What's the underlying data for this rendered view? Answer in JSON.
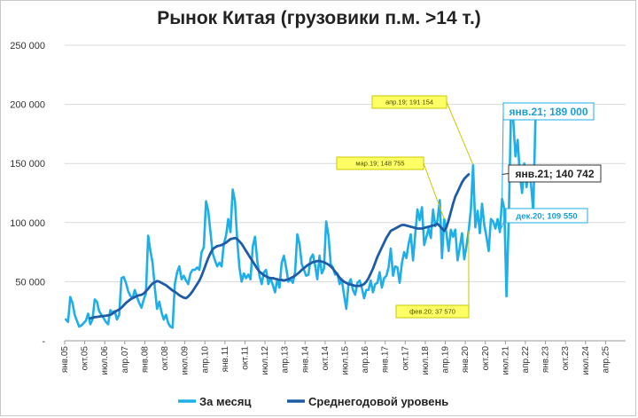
{
  "chart_data": {
    "type": "line",
    "title": "Рынок Китая (грузовики п.м. >14 т.)",
    "xlabel": "",
    "ylabel": "",
    "ylim": [
      0,
      250000
    ],
    "y_ticks": [
      "-",
      "50 000",
      "100 000",
      "150 000",
      "200 000",
      "250 000"
    ],
    "x_ticks": [
      "янв.05",
      "окт.05",
      "июл.06",
      "апр.07",
      "янв.08",
      "окт.08",
      "июл.09",
      "апр.10",
      "янв.11",
      "окт.11",
      "июл.12",
      "апр.13",
      "янв.14",
      "окт.14",
      "июл.15",
      "апр.16",
      "янв.17",
      "окт.17",
      "июл.18",
      "апр.19",
      "янв.20",
      "окт.20",
      "июл.21",
      "апр.22",
      "янв.23",
      "окт.23",
      "июл.24",
      "апр.25"
    ],
    "grid": true,
    "legend_position": "bottom",
    "series": [
      {
        "name": "За месяц",
        "color": "#1eaee8",
        "values": [
          18000,
          16000,
          37000,
          32000,
          22000,
          17000,
          12000,
          13000,
          15000,
          17000,
          23000,
          14000,
          18000,
          35000,
          33000,
          25000,
          22000,
          19000,
          16000,
          14000,
          26000,
          24000,
          25000,
          18000,
          22000,
          53000,
          54000,
          49000,
          42000,
          38000,
          36000,
          43000,
          37000,
          32000,
          28000,
          35000,
          40000,
          89000,
          76000,
          66000,
          45000,
          27000,
          33000,
          24000,
          18000,
          22000,
          15000,
          12000,
          11000,
          48000,
          58000,
          63000,
          52000,
          55000,
          51000,
          48000,
          57000,
          60000,
          60000,
          62000,
          60000,
          75000,
          79000,
          118000,
          110000,
          92000,
          74000,
          68000,
          63000,
          66000,
          63000,
          82000,
          89000,
          103000,
          92000,
          128000,
          118000,
          85000,
          62000,
          50000,
          57000,
          53000,
          56000,
          52000,
          80000,
          88000,
          68000,
          55000,
          48000,
          58000,
          60000,
          48000,
          53000,
          47000,
          41000,
          52000,
          45000,
          66000,
          72000,
          62000,
          50000,
          52000,
          49000,
          58000,
          90000,
          82000,
          65000,
          60000,
          55000,
          56000,
          70000,
          73000,
          64000,
          52000,
          72000,
          57000,
          61000,
          101000,
          89000,
          65000,
          62000,
          56000,
          57000,
          48000,
          52000,
          39000,
          27000,
          48000,
          52000,
          43000,
          39000,
          49000,
          51000,
          45000,
          36000,
          43000,
          43000,
          51000,
          41000,
          48000,
          49000,
          58000,
          45000,
          53000,
          55000,
          62000,
          78000,
          55000,
          63000,
          62000,
          49000,
          66000,
          75000,
          70000,
          82000,
          90000,
          68000,
          90000,
          111000,
          102000,
          113000,
          81000,
          88000,
          95000,
          87000,
          111000,
          97000,
          102000,
          119000,
          70000,
          103000,
          91000,
          76000,
          94000,
          88000,
          94000,
          68000,
          79000,
          91000,
          69000,
          80000,
          93000,
          111000,
          148755,
          96000,
          110000,
          91000,
          116000,
          98000,
          88000,
          76000,
          103000,
          101000,
          95000,
          103000,
          92000,
          120000,
          112000,
          37570,
          102000,
          191154,
          188000,
          156000,
          170000,
          140000,
          125000,
          150000,
          130000,
          144000,
          133000,
          109550,
          189000
        ]
      },
      {
        "name": "Среднегодовой уровень",
        "color": "#1f5ca8",
        "start_index": 11,
        "values": [
          19000,
          19500,
          20000,
          20200,
          20500,
          20800,
          21000,
          21200,
          21500,
          22000,
          23000,
          24500,
          25500,
          26500,
          28000,
          30000,
          32000,
          33500,
          35000,
          36000,
          37000,
          38000,
          38500,
          39000,
          40000,
          42000,
          44000,
          46500,
          48500,
          49500,
          50500,
          50000,
          49000,
          48000,
          47000,
          45500,
          44000,
          42500,
          41500,
          40000,
          38500,
          37500,
          36500,
          36000,
          37500,
          39500,
          42000,
          45000,
          48000,
          51000,
          55000,
          60000,
          65000,
          70000,
          74000,
          77500,
          79000,
          80000,
          80500,
          81000,
          82000,
          83000,
          84500,
          86000,
          86500,
          87000,
          86000,
          84000,
          82000,
          79000,
          76000,
          73000,
          70000,
          67000,
          64000,
          61000,
          58500,
          57000,
          55500,
          54500,
          53500,
          53000,
          53000,
          52500,
          52000,
          51500,
          51500,
          51000,
          51500,
          52000,
          53000,
          54000,
          55000,
          56500,
          58000,
          60000,
          61500,
          63000,
          64500,
          65500,
          66500,
          67000,
          67500,
          67500,
          67000,
          66500,
          65500,
          64500,
          63000,
          61000,
          58500,
          56000,
          53500,
          51500,
          50000,
          49000,
          48000,
          47500,
          47000,
          46500,
          46500,
          46500,
          47000,
          48000,
          50000,
          53000,
          57000,
          61000,
          66000,
          71000,
          75000,
          79000,
          83000,
          87000,
          90000,
          93000,
          94000,
          95000,
          96000,
          97000,
          98000,
          98000,
          97500,
          97000,
          96500,
          96000,
          95500,
          95000,
          95000,
          95000,
          95500,
          96000,
          96500,
          97000,
          97500,
          98000,
          99000,
          97000,
          95000,
          93000,
          96000,
          102000,
          109000,
          116000,
          122000,
          126000,
          130000,
          134000,
          137000,
          139000,
          140742
        ]
      }
    ],
    "annotations": [
      {
        "label": "апр.19; 191 154",
        "series": 0,
        "index": 183,
        "style": "yellow"
      },
      {
        "label": "мар.19; 148 755",
        "series": 0,
        "index": 170,
        "style": "yellow"
      },
      {
        "label": "фев.20; 37 570",
        "series": 0,
        "index": 181,
        "style": "yellow"
      },
      {
        "label": "янв.21;  189 000",
        "series": 0,
        "index": 196,
        "style": "box-light"
      },
      {
        "label": "дек.20;  109 550",
        "series": 0,
        "index": 195,
        "style": "box-light-small"
      },
      {
        "label": "янв.21;  140 742",
        "series": 1,
        "index": 196,
        "style": "box-dark"
      }
    ]
  }
}
